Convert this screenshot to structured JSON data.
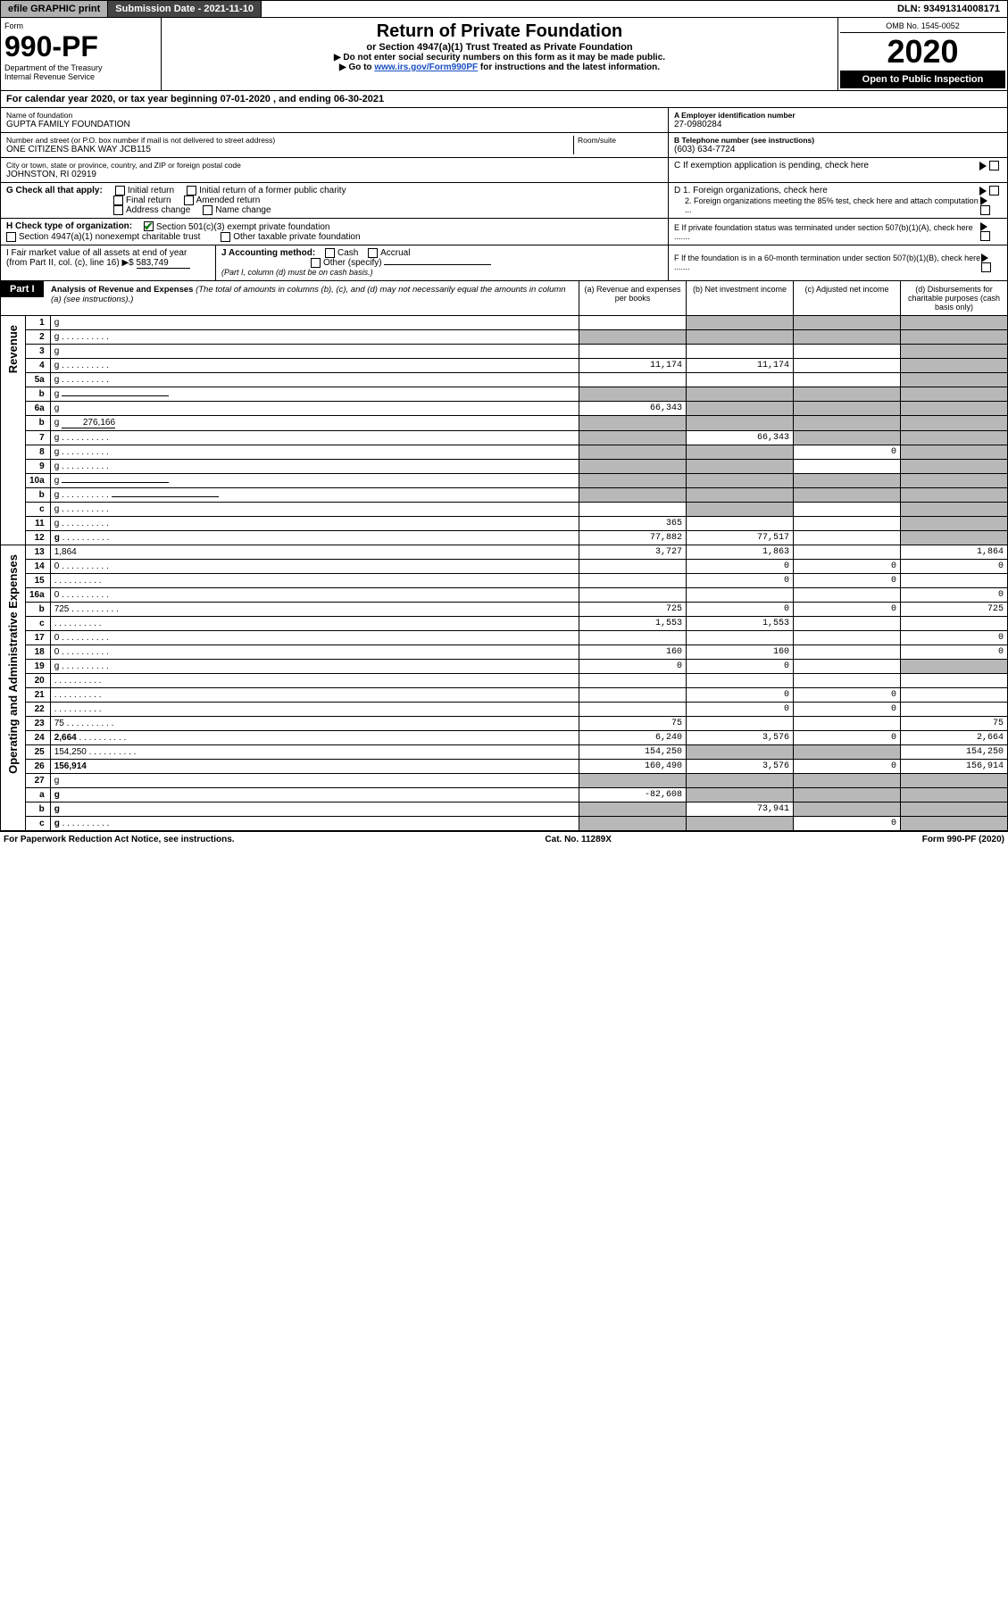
{
  "topbar": {
    "efile": "efile GRAPHIC print",
    "subdate_lbl": "Submission Date - ",
    "subdate": "2021-11-10",
    "dln_lbl": "DLN: ",
    "dln": "93491314008171"
  },
  "header": {
    "form_lbl": "Form",
    "form_num": "990-PF",
    "dept": "Department of the Treasury",
    "irs": "Internal Revenue Service",
    "title": "Return of Private Foundation",
    "subtitle": "or Section 4947(a)(1) Trust Treated as Private Foundation",
    "note1": "▶ Do not enter social security numbers on this form as it may be made public.",
    "note2_pre": "▶ Go to ",
    "note2_link": "www.irs.gov/Form990PF",
    "note2_post": " for instructions and the latest information.",
    "omb": "OMB No. 1545-0052",
    "year": "2020",
    "open": "Open to Public Inspection"
  },
  "calendar": {
    "pre": "For calendar year 2020, or tax year beginning ",
    "begin": "07-01-2020",
    "mid": " , and ending ",
    "end": "06-30-2021"
  },
  "entity": {
    "name_lbl": "Name of foundation",
    "name": "GUPTA FAMILY FOUNDATION",
    "addr_lbl": "Number and street (or P.O. box number if mail is not delivered to street address)",
    "addr": "ONE CITIZENS BANK WAY JCB115",
    "room_lbl": "Room/suite",
    "city_lbl": "City or town, state or province, country, and ZIP or foreign postal code",
    "city": "JOHNSTON, RI  02919",
    "ein_lbl": "A Employer identification number",
    "ein": "27-0980284",
    "tel_lbl": "B Telephone number (see instructions)",
    "tel": "(603) 634-7724",
    "c_lbl": "C If exemption application is pending, check here"
  },
  "checks": {
    "g_lbl": "G Check all that apply:",
    "initial": "Initial return",
    "initial_former": "Initial return of a former public charity",
    "final": "Final return",
    "amended": "Amended return",
    "addr_chg": "Address change",
    "name_chg": "Name change",
    "h_lbl": "H Check type of organization:",
    "h_501": "Section 501(c)(3) exempt private foundation",
    "h_4947": "Section 4947(a)(1) nonexempt charitable trust",
    "h_other": "Other taxable private foundation",
    "i_lbl": "I Fair market value of all assets at end of year (from Part II, col. (c), line 16) ▶$",
    "i_val": "583,749",
    "j_lbl": "J Accounting method:",
    "j_cash": "Cash",
    "j_accrual": "Accrual",
    "j_other": "Other (specify)",
    "j_note": "(Part I, column (d) must be on cash basis.)",
    "d1": "D 1. Foreign organizations, check here",
    "d2": "2. Foreign organizations meeting the 85% test, check here and attach computation ...",
    "e_lbl": "E  If private foundation status was terminated under section 507(b)(1)(A), check here .......",
    "f_lbl": "F  If the foundation is in a 60-month termination under section 507(b)(1)(B), check here ......."
  },
  "part1": {
    "label": "Part I",
    "title": "Analysis of Revenue and Expenses",
    "note": " (The total of amounts in columns (b), (c), and (d) may not necessarily equal the amounts in column (a) (see instructions).)",
    "col_a": "(a) Revenue and expenses per books",
    "col_b": "(b) Net investment income",
    "col_c": "(c) Adjusted net income",
    "col_d": "(d) Disbursements for charitable purposes (cash basis only)"
  },
  "side": {
    "revenue": "Revenue",
    "opex": "Operating and Administrative Expenses"
  },
  "rows": [
    {
      "n": "1",
      "d": "g",
      "a": "",
      "b": "g",
      "c": "g"
    },
    {
      "n": "2",
      "d": "g",
      "dots": true,
      "a": "g",
      "b": "g",
      "c": "g"
    },
    {
      "n": "3",
      "d": "g",
      "a": "",
      "b": "",
      "c": ""
    },
    {
      "n": "4",
      "d": "g",
      "dots": true,
      "a": "11,174",
      "b": "11,174",
      "c": ""
    },
    {
      "n": "5a",
      "d": "g",
      "dots": true,
      "a": "",
      "b": "",
      "c": ""
    },
    {
      "n": "b",
      "d": "g",
      "uline": true,
      "a": "g",
      "b": "g",
      "c": "g"
    },
    {
      "n": "6a",
      "d": "g",
      "a": "66,343",
      "b": "g",
      "c": "g"
    },
    {
      "n": "b",
      "d": "g",
      "uval": "276,166",
      "a": "g",
      "b": "g",
      "c": "g"
    },
    {
      "n": "7",
      "d": "g",
      "dots": true,
      "a": "g",
      "b": "66,343",
      "c": "g"
    },
    {
      "n": "8",
      "d": "g",
      "dots": true,
      "a": "g",
      "b": "g",
      "c": "0"
    },
    {
      "n": "9",
      "d": "g",
      "dots": true,
      "a": "g",
      "b": "g",
      "c": ""
    },
    {
      "n": "10a",
      "d": "g",
      "uline": true,
      "a": "g",
      "b": "g",
      "c": "g"
    },
    {
      "n": "b",
      "d": "g",
      "dots": true,
      "uline": true,
      "a": "g",
      "b": "g",
      "c": "g"
    },
    {
      "n": "c",
      "d": "g",
      "dots": true,
      "a": "",
      "b": "g",
      "c": ""
    },
    {
      "n": "11",
      "d": "g",
      "dots": true,
      "a": "365",
      "b": "",
      "c": ""
    },
    {
      "n": "12",
      "d": "g",
      "bold": true,
      "dots": true,
      "a": "77,882",
      "b": "77,517",
      "c": ""
    },
    {
      "n": "13",
      "d": "1,864",
      "a": "3,727",
      "b": "1,863",
      "c": ""
    },
    {
      "n": "14",
      "d": "0",
      "dots": true,
      "a": "",
      "b": "0",
      "c": "0"
    },
    {
      "n": "15",
      "d": "",
      "dots": true,
      "a": "",
      "b": "0",
      "c": "0"
    },
    {
      "n": "16a",
      "d": "0",
      "dots": true,
      "a": "",
      "b": "",
      "c": ""
    },
    {
      "n": "b",
      "d": "725",
      "dots": true,
      "a": "725",
      "b": "0",
      "c": "0"
    },
    {
      "n": "c",
      "d": "",
      "dots": true,
      "a": "1,553",
      "b": "1,553",
      "c": ""
    },
    {
      "n": "17",
      "d": "0",
      "dots": true,
      "a": "",
      "b": "",
      "c": ""
    },
    {
      "n": "18",
      "d": "0",
      "dots": true,
      "a": "160",
      "b": "160",
      "c": ""
    },
    {
      "n": "19",
      "d": "g",
      "dots": true,
      "a": "0",
      "b": "0",
      "c": ""
    },
    {
      "n": "20",
      "d": "",
      "dots": true,
      "a": "",
      "b": "",
      "c": ""
    },
    {
      "n": "21",
      "d": "",
      "dots": true,
      "a": "",
      "b": "0",
      "c": "0"
    },
    {
      "n": "22",
      "d": "",
      "dots": true,
      "a": "",
      "b": "0",
      "c": "0"
    },
    {
      "n": "23",
      "d": "75",
      "dots": true,
      "a": "75",
      "b": "",
      "c": ""
    },
    {
      "n": "24",
      "d": "2,664",
      "bold": true,
      "dots": true,
      "a": "6,240",
      "b": "3,576",
      "c": "0"
    },
    {
      "n": "25",
      "d": "154,250",
      "dots": true,
      "a": "154,250",
      "b": "g",
      "c": "g"
    },
    {
      "n": "26",
      "d": "156,914",
      "bold": true,
      "a": "160,490",
      "b": "3,576",
      "c": "0"
    },
    {
      "n": "27",
      "d": "g",
      "a": "g",
      "b": "g",
      "c": "g"
    },
    {
      "n": "a",
      "d": "g",
      "bold": true,
      "a": "-82,608",
      "b": "g",
      "c": "g"
    },
    {
      "n": "b",
      "d": "g",
      "bold": true,
      "a": "g",
      "b": "73,941",
      "c": "g"
    },
    {
      "n": "c",
      "d": "g",
      "bold": true,
      "dots": true,
      "a": "g",
      "b": "g",
      "c": "0"
    }
  ],
  "footer": {
    "left": "For Paperwork Reduction Act Notice, see instructions.",
    "mid": "Cat. No. 11289X",
    "right": "Form 990-PF (2020)"
  }
}
